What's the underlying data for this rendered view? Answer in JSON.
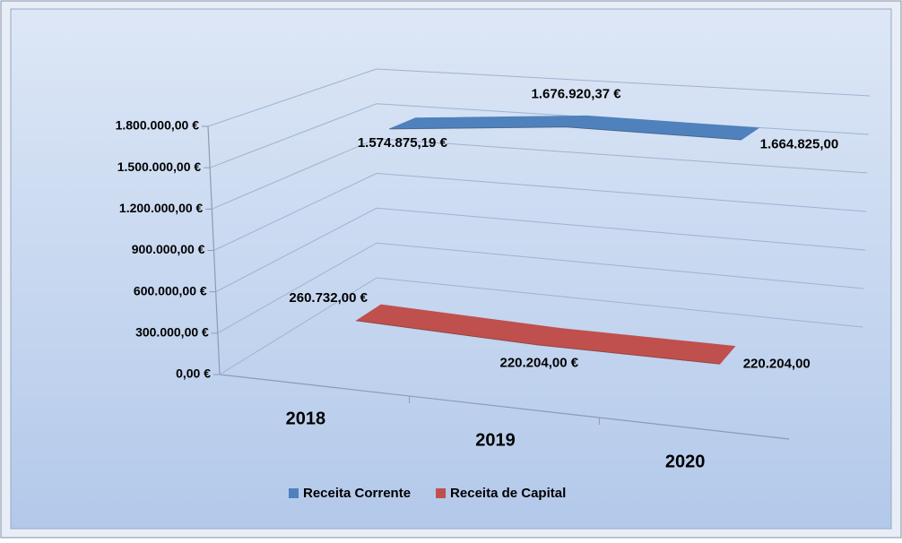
{
  "chart_data": {
    "type": "line3d",
    "categories": [
      "2018",
      "2019",
      "2020"
    ],
    "series": [
      {
        "name": "Receita Corrente",
        "color": "#4f81bd",
        "values": [
          1574875.19,
          1676920.37,
          1664825.0
        ],
        "value_labels": [
          "1.574.875,19 €",
          "1.676.920,37 €",
          "1.664.825,00"
        ]
      },
      {
        "name": "Receita de Capital",
        "color": "#c0504d",
        "values": [
          260732.0,
          220204.0,
          220204.0
        ],
        "value_labels": [
          "260.732,00 €",
          "220.204,00 €",
          "220.204,00"
        ]
      }
    ],
    "ylim": [
      0,
      1800000
    ],
    "yticks": [
      {
        "value": 0,
        "label": "0,00 €"
      },
      {
        "value": 300000,
        "label": "300.000,00 €"
      },
      {
        "value": 600000,
        "label": "600.000,00 €"
      },
      {
        "value": 900000,
        "label": "900.000,00 €"
      },
      {
        "value": 1200000,
        "label": "1.200.000,00 €"
      },
      {
        "value": 1500000,
        "label": "1.500.000,00 €"
      },
      {
        "value": 1800000,
        "label": "1.800.000,00 €"
      }
    ],
    "grid": true,
    "legend": "bottom"
  }
}
